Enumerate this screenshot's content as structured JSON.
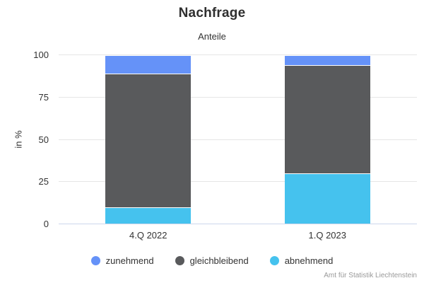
{
  "header": {
    "title": "Nachfrage",
    "subtitle": "Anteile"
  },
  "credits": "Amt für Statistik Liechtenstein",
  "colors": {
    "zunehmend": "#6592f8",
    "gleichbleibend": "#595a5c",
    "abnehmend": "#45c2ee",
    "gridline": "#e6e6e6",
    "axis_line": "#ccd6eb",
    "text": "#333333",
    "credits_text": "#999999"
  },
  "chart_data": {
    "type": "bar",
    "stacked": true,
    "title": "Nachfrage",
    "subtitle": "Anteile",
    "xlabel": "",
    "ylabel": "in %",
    "ylim": [
      0,
      100
    ],
    "yticks": [
      0,
      25,
      50,
      75,
      100
    ],
    "grid": true,
    "legend_position": "bottom",
    "categories": [
      "4.Q 2022",
      "1.Q 2023"
    ],
    "series": [
      {
        "name": "zunehmend",
        "color": "#6592f8",
        "values": [
          11,
          6
        ]
      },
      {
        "name": "gleichbleibend",
        "color": "#595a5c",
        "values": [
          79,
          64
        ]
      },
      {
        "name": "abnehmend",
        "color": "#45c2ee",
        "values": [
          10,
          30
        ]
      }
    ]
  }
}
